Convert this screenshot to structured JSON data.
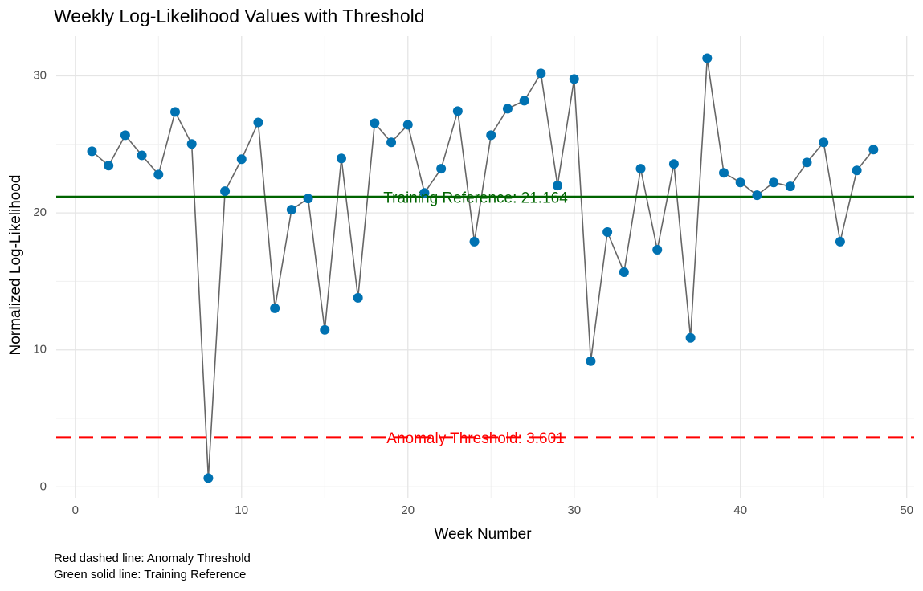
{
  "chart_data": {
    "type": "line",
    "title": "Weekly Log-Likelihood Values with Threshold",
    "x_label": "Week Number",
    "y_label": "Normalized Log-Likelihood",
    "caption": [
      "Red dashed line: Anomaly Threshold",
      "Green solid line: Training Reference"
    ],
    "x": [
      1,
      2,
      3,
      4,
      5,
      6,
      7,
      8,
      9,
      10,
      11,
      12,
      13,
      14,
      15,
      16,
      17,
      18,
      19,
      20,
      21,
      22,
      23,
      24,
      25,
      26,
      27,
      28,
      29,
      30,
      31,
      32,
      33,
      34,
      35,
      36,
      37,
      38,
      39,
      40,
      41,
      42,
      43,
      44,
      45,
      46,
      47,
      48
    ],
    "values": [
      24.5,
      23.45,
      25.67,
      24.2,
      22.8,
      27.37,
      25.03,
      0.64,
      21.58,
      23.92,
      26.6,
      13.04,
      20.23,
      21.05,
      11.46,
      23.98,
      13.8,
      26.55,
      25.15,
      26.43,
      21.46,
      23.22,
      27.43,
      17.9,
      25.67,
      27.6,
      28.19,
      30.18,
      21.99,
      29.77,
      9.18,
      18.6,
      15.67,
      23.22,
      17.31,
      23.57,
      10.88,
      31.29,
      22.92,
      22.22,
      21.29,
      22.22,
      21.93,
      23.68,
      25.15,
      17.9,
      23.1,
      24.62
    ],
    "line_color": "#666666",
    "point_color": "#0072B2",
    "hlines": [
      {
        "value": 21.164,
        "label": "Training Reference: 21.164",
        "color": "#006400",
        "dashed": false
      },
      {
        "value": 3.601,
        "label": "Anomaly Threshold: 3.601",
        "color": "#ff0000",
        "dashed": true
      }
    ],
    "xlim": [
      -1.15,
      50.45
    ],
    "ylim": [
      -0.8,
      32.9
    ],
    "xticks": [
      0,
      10,
      20,
      30,
      40,
      50
    ],
    "yticks": [
      0,
      10,
      20,
      30
    ],
    "x_minor_ticks": [
      5,
      15,
      25,
      35,
      45
    ],
    "y_minor_ticks": [
      5,
      15,
      25
    ],
    "grid": true
  }
}
